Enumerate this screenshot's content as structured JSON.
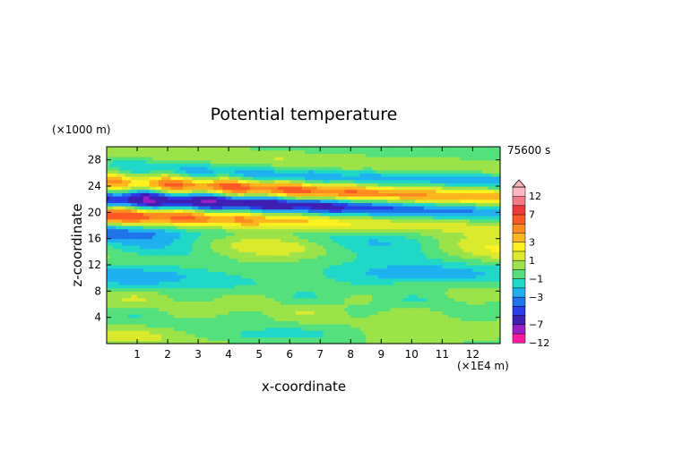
{
  "chart_data": {
    "type": "heatmap",
    "title": "Potential temperature",
    "xlabel": "x-coordinate",
    "ylabel": "z-coordinate",
    "x_unit": "(×1E4 m)",
    "y_unit": "(×1000 m)",
    "time_label": "75600 s",
    "xlim": [
      0,
      12.9
    ],
    "ylim": [
      0,
      30
    ],
    "x_ticks": [
      1,
      2,
      3,
      4,
      5,
      6,
      7,
      8,
      9,
      10,
      11,
      12
    ],
    "y_ticks": [
      4,
      8,
      12,
      16,
      20,
      24,
      28
    ],
    "grid": false,
    "colorbar": {
      "placement": "right",
      "levels": [
        -12,
        -9,
        -7,
        -5,
        -4,
        -3,
        -2,
        -1,
        0,
        1,
        2,
        3,
        4,
        5,
        7,
        9,
        12
      ],
      "tick_labels": [
        "12",
        "7",
        "3",
        "1",
        "−1",
        "−3",
        "−7",
        "−12"
      ],
      "tick_values": [
        12,
        7,
        3,
        1,
        -1,
        -3,
        -7,
        -12
      ],
      "colors": [
        "#ff1aa0",
        "#9a1fc8",
        "#3f1fb4",
        "#2a3de6",
        "#1e74ea",
        "#1fb0ef",
        "#20d8c7",
        "#53e07d",
        "#9be349",
        "#dcea2d",
        "#fff21f",
        "#ffb51f",
        "#ff8a1f",
        "#ff5a26",
        "#ee3a3a",
        "#f57a86",
        "#ffb6c1"
      ]
    }
  }
}
